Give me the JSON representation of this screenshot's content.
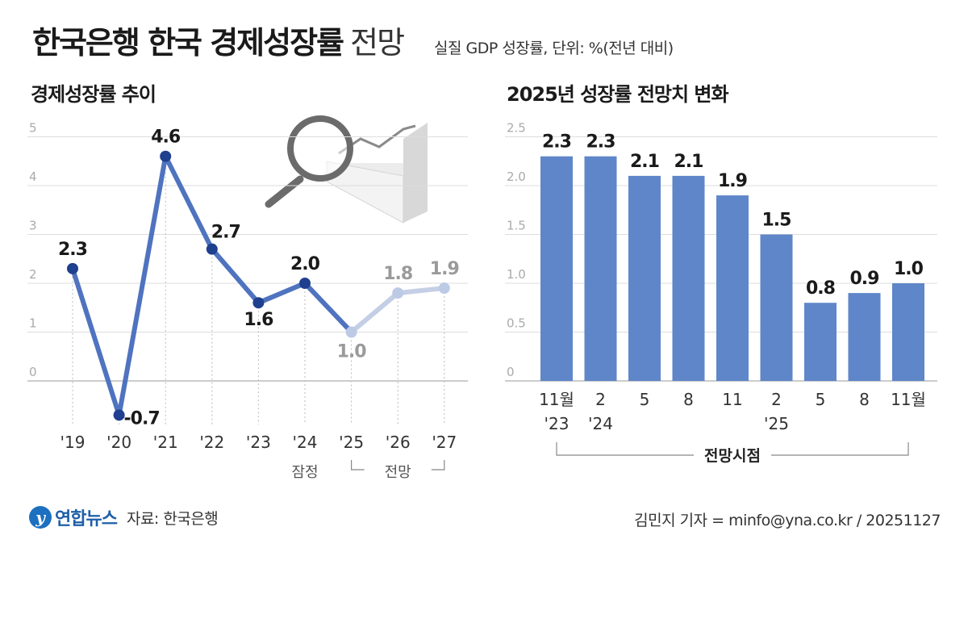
{
  "header": {
    "title_bold": "한국은행 한국 경제성장률",
    "title_light": "전망",
    "subtitle": "실질 GDP 성장률, 단위: %(전년 대비)"
  },
  "colors": {
    "line": "#4f73bf",
    "marker": "#1f3f8f",
    "forecast_line": "#c4cfe6",
    "forecast_marker": "#bccae6",
    "bar": "#5f86c8",
    "grid": "#dddddd",
    "forecast_label": "#9a9a9a"
  },
  "chart_data": [
    {
      "type": "line",
      "title": "경제성장률 추이",
      "categories": [
        "'19",
        "'20",
        "'21",
        "'22",
        "'23",
        "'24",
        "'25",
        "'26",
        "'27"
      ],
      "values": [
        2.3,
        -0.7,
        4.6,
        2.7,
        1.6,
        2.0,
        1.0,
        1.8,
        1.9
      ],
      "value_labels": [
        "2.3",
        "-0.7",
        "4.6",
        "2.7",
        "1.6",
        "2.0",
        "1.0",
        "1.8",
        "1.9"
      ],
      "y_ticks": [
        "5",
        "4",
        "3",
        "2",
        "1",
        "0"
      ],
      "ylim": [
        0,
        5
      ],
      "provisional_label": "잠정",
      "forecast_label": "전망",
      "forecast_from_index": 6,
      "grid": true
    },
    {
      "type": "bar",
      "title": "2025년 성장률 전망치 변화",
      "categories": [
        "11월",
        "2",
        "5",
        "8",
        "11",
        "2",
        "5",
        "8",
        "11월"
      ],
      "category_years": [
        "'23",
        "'24",
        "",
        "",
        "",
        "'25",
        "",
        "",
        ""
      ],
      "values": [
        2.3,
        2.3,
        2.1,
        2.1,
        1.9,
        1.5,
        0.8,
        0.9,
        1.0
      ],
      "value_labels": [
        "2.3",
        "2.3",
        "2.1",
        "2.1",
        "1.9",
        "1.5",
        "0.8",
        "0.9",
        "1.0"
      ],
      "y_ticks": [
        "2.5",
        "2.0",
        "1.5",
        "1.0",
        "0.5",
        "0"
      ],
      "ylim": [
        0,
        2.5
      ],
      "x_group_label": "전망시점",
      "grid": true
    }
  ],
  "footer": {
    "logo_text": "연합뉴스",
    "source": "자료: 한국은행",
    "credit": "김민지 기자 = minfo@yna.co.kr / 20251127"
  }
}
